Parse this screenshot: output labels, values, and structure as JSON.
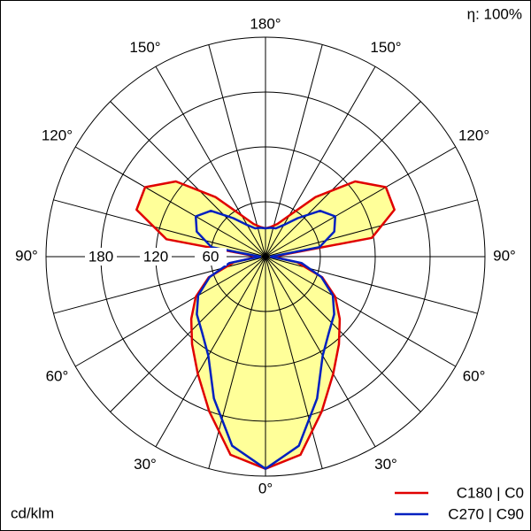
{
  "chart_data": {
    "type": "polar",
    "efficiency_label": "η: 100%",
    "unit_label": "cd/klm",
    "rlim": [
      0,
      240
    ],
    "rticks": [
      60,
      120,
      180
    ],
    "angle_grid_step": 15,
    "angle_ticks": [
      {
        "value": 0,
        "label": "0°"
      },
      {
        "value": 30,
        "label": "30°"
      },
      {
        "value": 60,
        "label": "60°"
      },
      {
        "value": 90,
        "label": "90°"
      },
      {
        "value": 120,
        "label": "120°"
      },
      {
        "value": 150,
        "label": "150°"
      },
      {
        "value": 180,
        "label": "180°"
      },
      {
        "value": -30,
        "label": "30°"
      },
      {
        "value": -60,
        "label": "60°"
      },
      {
        "value": -90,
        "label": "90°"
      },
      {
        "value": -120,
        "label": "120°"
      },
      {
        "value": -150,
        "label": "150°"
      }
    ],
    "fill_color": "#ffff99",
    "x": [
      -180,
      -170,
      -160,
      -150,
      -140,
      -130,
      -120,
      -110,
      -100,
      -90,
      -80,
      -70,
      -60,
      -50,
      -40,
      -30,
      -20,
      -10,
      0,
      10,
      20,
      30,
      40,
      50,
      60,
      70,
      80,
      90,
      100,
      110,
      120,
      130,
      140,
      150,
      160,
      170,
      180
    ],
    "series": [
      {
        "name": "C180 | C0",
        "color": "#e00000",
        "values": [
          31,
          33,
          38,
          52,
          85,
          128,
          152,
          150,
          110,
          8,
          35,
          66,
          88,
          106,
          125,
          148,
          180,
          220,
          232,
          220,
          180,
          148,
          125,
          106,
          88,
          66,
          35,
          8,
          118,
          150,
          152,
          128,
          85,
          52,
          38,
          33,
          31
        ]
      },
      {
        "name": "C270 | C90",
        "color": "#0020c0",
        "values": [
          31,
          32,
          33,
          40,
          55,
          78,
          88,
          80,
          60,
          6,
          40,
          65,
          85,
          98,
          108,
          125,
          165,
          210,
          232,
          210,
          165,
          125,
          108,
          98,
          85,
          65,
          40,
          6,
          60,
          80,
          88,
          78,
          55,
          40,
          33,
          32,
          31
        ]
      }
    ]
  }
}
